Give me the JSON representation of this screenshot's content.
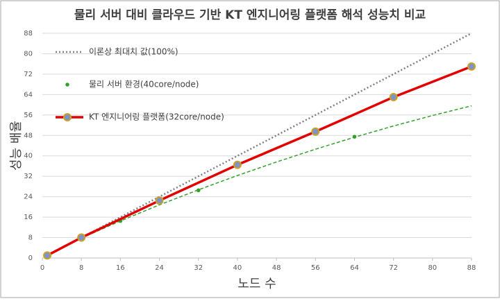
{
  "chart_data": {
    "type": "line",
    "title": "물리 서버 대비 클라우드 기반 KT 엔지니어링 플랫폼 해석 성능치 비교",
    "x_label": "노드 수",
    "y_label": "성능 배율",
    "xlim": [
      0,
      88
    ],
    "xticks": [
      0,
      8,
      16,
      24,
      32,
      40,
      48,
      56,
      64,
      72,
      80,
      88
    ],
    "ylim": [
      0,
      88
    ],
    "yticks": [
      0,
      8,
      16,
      24,
      32,
      40,
      48,
      56,
      64,
      72,
      80,
      88
    ],
    "grid": true,
    "legend": "upper left",
    "series": [
      {
        "name": "이론상 최대치 값(100%)",
        "color": "#7f7f7f",
        "style": "dotted",
        "x": [
          1,
          88
        ],
        "values": [
          1,
          88
        ]
      },
      {
        "name": "물리 서버 환경(40core/node)",
        "color": "#33a02c",
        "style": "markers",
        "x": [
          1,
          8,
          16,
          32,
          64
        ],
        "values": [
          1,
          7.8,
          14.5,
          26.5,
          47.5
        ],
        "trend": {
          "x": [
            1,
            8,
            16,
            24,
            32,
            40,
            48,
            56,
            64,
            72,
            80,
            88
          ],
          "values": [
            1,
            7.8,
            14.5,
            20.8,
            26.7,
            32.3,
            37.6,
            42.6,
            47.3,
            51.7,
            55.8,
            59.6
          ]
        }
      },
      {
        "name": "KT 엔지니어링 플랫폼(32core/node)",
        "color": "#e30000",
        "style": "line-markers",
        "marker_fill": "#7f93c6",
        "marker_edge": "#c9a227",
        "x": [
          1,
          8,
          24,
          40,
          56,
          72,
          88
        ],
        "values": [
          1,
          8,
          22.5,
          36.5,
          49.5,
          63,
          75
        ]
      }
    ]
  }
}
